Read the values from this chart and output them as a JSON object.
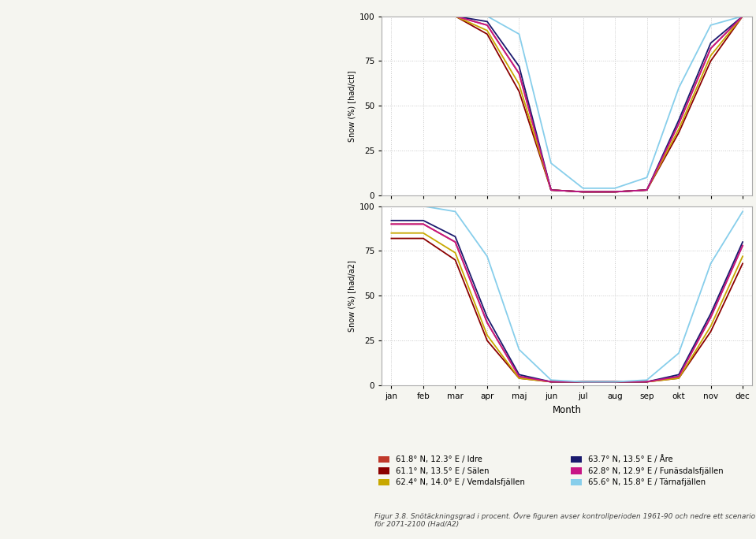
{
  "months": [
    "jan",
    "feb",
    "mar",
    "apr",
    "maj",
    "jun",
    "jul",
    "aug",
    "sep",
    "okt",
    "nov",
    "dec"
  ],
  "ylabel": "Snow (%) [had/ctl]",
  "ylabel2": "Snow (%) [had/a2]",
  "xlabel": "Month",
  "ylim": [
    0,
    100
  ],
  "yticks": [
    0,
    25,
    50,
    75,
    100
  ],
  "caption": "Figur 3.8. Snötäckningsgrad i procent. Övre figuren avser kontrollperioden 1961-90 och nedre ett scenario för 2071-2100 (Had/A2)",
  "legend": [
    {
      "label": "61.8° N, 12.3° E / Idre",
      "color": "#c0392b"
    },
    {
      "label": "61.1° N, 13.5° E / Sälen",
      "color": "#8b0000"
    },
    {
      "label": "62.4° N, 14.0° E / Vemdalsfjällen",
      "color": "#c8a800"
    },
    {
      "label": "63.7° N, 13.5° E / Åre",
      "color": "#1a1a6e"
    },
    {
      "label": "62.8° N, 12.9° E / Funäsdalsfjällen",
      "color": "#c71585"
    },
    {
      "label": "65.6° N, 15.8° E / Tärnafjällen",
      "color": "#87ceeb"
    }
  ],
  "top_data": {
    "Idre": [
      100,
      100,
      100,
      95,
      68,
      3,
      2,
      2,
      3,
      40,
      82,
      100
    ],
    "Salen": [
      100,
      100,
      100,
      90,
      58,
      3,
      2,
      2,
      3,
      35,
      75,
      100
    ],
    "Vemdalsfjallen": [
      100,
      100,
      100,
      92,
      62,
      3,
      2,
      2,
      3,
      37,
      78,
      100
    ],
    "Are": [
      100,
      100,
      100,
      97,
      72,
      3,
      2,
      2,
      3,
      42,
      85,
      100
    ],
    "Funasdalsfjallen": [
      100,
      100,
      100,
      95,
      68,
      3,
      2,
      2,
      3,
      40,
      82,
      100
    ],
    "Tarnafjallen": [
      100,
      100,
      100,
      100,
      90,
      18,
      4,
      4,
      10,
      60,
      95,
      100
    ]
  },
  "bottom_data": {
    "Idre": [
      90,
      90,
      80,
      35,
      5,
      2,
      2,
      2,
      2,
      5,
      38,
      78
    ],
    "Salen": [
      82,
      82,
      70,
      25,
      4,
      2,
      2,
      2,
      2,
      4,
      30,
      68
    ],
    "Vemdalsfjallen": [
      85,
      85,
      74,
      28,
      4,
      2,
      2,
      2,
      2,
      4,
      33,
      72
    ],
    "Are": [
      92,
      92,
      83,
      38,
      6,
      2,
      2,
      2,
      2,
      6,
      40,
      80
    ],
    "Funasdalsfjallen": [
      90,
      90,
      80,
      35,
      5,
      2,
      2,
      2,
      2,
      5,
      38,
      78
    ],
    "Tarnafjallen": [
      100,
      100,
      97,
      72,
      20,
      3,
      2,
      2,
      3,
      18,
      68,
      97
    ]
  },
  "background_color": "#ffffff",
  "grid_color": "#c8c8c8",
  "border_color": "#aaaaaa",
  "page_bg": "#f5f5f0"
}
